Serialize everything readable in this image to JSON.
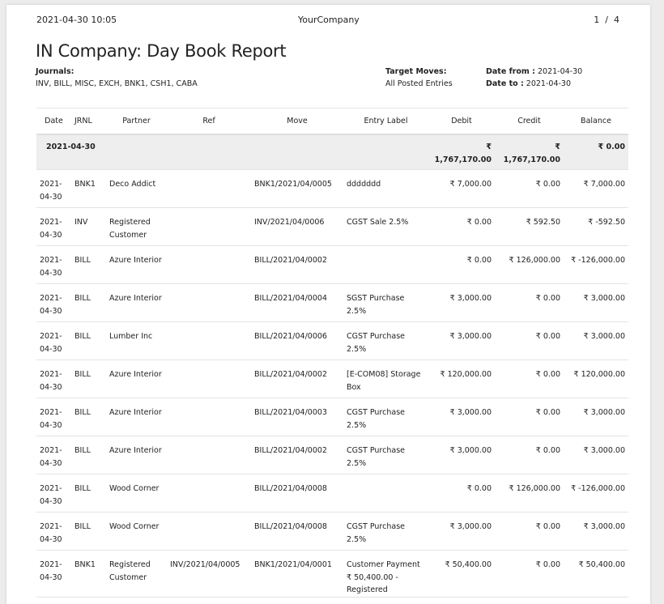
{
  "header": {
    "datetime": "2021-04-30 10:05",
    "company": "YourCompany",
    "pager": "1  /  4"
  },
  "title": "IN Company: Day Book Report",
  "journals": {
    "label": "Journals:",
    "value": "INV, BILL, MISC, EXCH, BNK1, CSH1, CABA"
  },
  "target": {
    "label": "Target Moves:",
    "value": "All Posted Entries"
  },
  "date_from": {
    "label": "Date from :",
    "value": "2021-04-30"
  },
  "date_to": {
    "label": "Date to :",
    "value": "2021-04-30"
  },
  "columns": [
    "Date",
    "JRNL",
    "Partner",
    "Ref",
    "Move",
    "Entry Label",
    "Debit",
    "Credit",
    "Balance"
  ],
  "group": {
    "date": "2021-04-30",
    "debit": "₹ 1,767,170.00",
    "credit": "₹ 1,767,170.00",
    "balance": "₹ 0.00"
  },
  "rows": [
    {
      "date": "2021-04-30",
      "jrnl": "BNK1",
      "partner": "Deco Addict",
      "ref": "",
      "move": "BNK1/2021/04/0005",
      "label": "ddddddd",
      "debit": "₹ 7,000.00",
      "credit": "₹ 0.00",
      "balance": "₹ 7,000.00"
    },
    {
      "date": "2021-04-30",
      "jrnl": "INV",
      "partner": "Registered Customer",
      "ref": "",
      "move": "INV/2021/04/0006",
      "label": "CGST Sale 2.5%",
      "debit": "₹ 0.00",
      "credit": "₹ 592.50",
      "balance": "₹ -592.50"
    },
    {
      "date": "2021-04-30",
      "jrnl": "BILL",
      "partner": "Azure Interior",
      "ref": "",
      "move": "BILL/2021/04/0002",
      "label": "",
      "debit": "₹ 0.00",
      "credit": "₹ 126,000.00",
      "balance": "₹ -126,000.00"
    },
    {
      "date": "2021-04-30",
      "jrnl": "BILL",
      "partner": "Azure Interior",
      "ref": "",
      "move": "BILL/2021/04/0004",
      "label": "SGST Purchase 2.5%",
      "debit": "₹ 3,000.00",
      "credit": "₹ 0.00",
      "balance": "₹ 3,000.00"
    },
    {
      "date": "2021-04-30",
      "jrnl": "BILL",
      "partner": "Lumber Inc",
      "ref": "",
      "move": "BILL/2021/04/0006",
      "label": "CGST Purchase 2.5%",
      "debit": "₹ 3,000.00",
      "credit": "₹ 0.00",
      "balance": "₹ 3,000.00"
    },
    {
      "date": "2021-04-30",
      "jrnl": "BILL",
      "partner": "Azure Interior",
      "ref": "",
      "move": "BILL/2021/04/0002",
      "label": "[E-COM08] Storage Box",
      "debit": "₹ 120,000.00",
      "credit": "₹ 0.00",
      "balance": "₹ 120,000.00"
    },
    {
      "date": "2021-04-30",
      "jrnl": "BILL",
      "partner": "Azure Interior",
      "ref": "",
      "move": "BILL/2021/04/0003",
      "label": "CGST Purchase 2.5%",
      "debit": "₹ 3,000.00",
      "credit": "₹ 0.00",
      "balance": "₹ 3,000.00"
    },
    {
      "date": "2021-04-30",
      "jrnl": "BILL",
      "partner": "Azure Interior",
      "ref": "",
      "move": "BILL/2021/04/0002",
      "label": "CGST Purchase 2.5%",
      "debit": "₹ 3,000.00",
      "credit": "₹ 0.00",
      "balance": "₹ 3,000.00"
    },
    {
      "date": "2021-04-30",
      "jrnl": "BILL",
      "partner": "Wood Corner",
      "ref": "",
      "move": "BILL/2021/04/0008",
      "label": "",
      "debit": "₹ 0.00",
      "credit": "₹ 126,000.00",
      "balance": "₹ -126,000.00"
    },
    {
      "date": "2021-04-30",
      "jrnl": "BILL",
      "partner": "Wood Corner",
      "ref": "",
      "move": "BILL/2021/04/0008",
      "label": "CGST Purchase 2.5%",
      "debit": "₹ 3,000.00",
      "credit": "₹ 0.00",
      "balance": "₹ 3,000.00"
    },
    {
      "date": "2021-04-30",
      "jrnl": "BNK1",
      "partner": "Registered Customer",
      "ref": "INV/2021/04/0005",
      "move": "BNK1/2021/04/0001",
      "label": "Customer Payment ₹ 50,400.00 - Registered",
      "debit": "₹ 50,400.00",
      "credit": "₹ 0.00",
      "balance": "₹ 50,400.00"
    }
  ]
}
